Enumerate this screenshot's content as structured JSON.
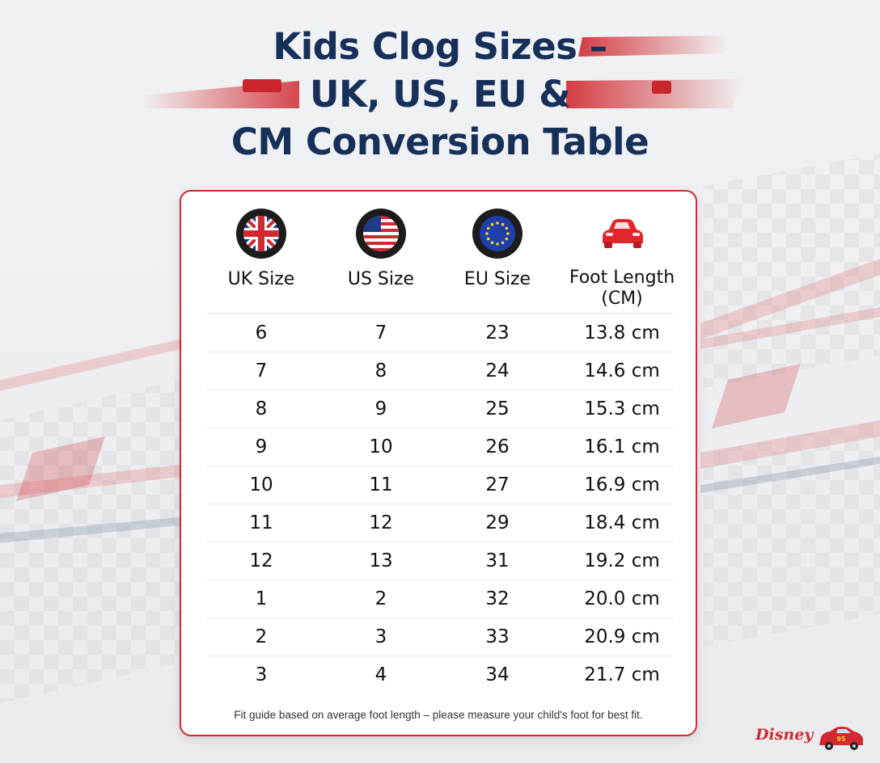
{
  "title": {
    "line1": "Kids Clog Sizes –",
    "line2": "UK, US, EU &",
    "line3": "CM Conversion Table"
  },
  "table": {
    "columns": [
      {
        "label": "UK Size",
        "icon": "uk-flag-icon"
      },
      {
        "label": "US Size",
        "icon": "us-flag-icon"
      },
      {
        "label": "EU Size",
        "icon": "eu-flag-icon"
      },
      {
        "label_line1": "Foot Length",
        "label_line2": "(CM)",
        "icon": "red-car-icon"
      }
    ],
    "rows": [
      {
        "uk": "6",
        "us": "7",
        "eu": "23",
        "cm": "13.8 cm"
      },
      {
        "uk": "7",
        "us": "8",
        "eu": "24",
        "cm": "14.6 cm"
      },
      {
        "uk": "8",
        "us": "9",
        "eu": "25",
        "cm": "15.3 cm"
      },
      {
        "uk": "9",
        "us": "10",
        "eu": "26",
        "cm": "16.1 cm"
      },
      {
        "uk": "10",
        "us": "11",
        "eu": "27",
        "cm": "16.9 cm"
      },
      {
        "uk": "11",
        "us": "12",
        "eu": "29",
        "cm": "18.4 cm"
      },
      {
        "uk": "12",
        "us": "13",
        "eu": "31",
        "cm": "19.2 cm"
      },
      {
        "uk": "1",
        "us": "2",
        "eu": "32",
        "cm": "20.0 cm"
      },
      {
        "uk": "2",
        "us": "3",
        "eu": "33",
        "cm": "20.9 cm"
      },
      {
        "uk": "3",
        "us": "4",
        "eu": "34",
        "cm": "21.7 cm"
      }
    ],
    "footnote": "Fit guide based on average foot length – please measure your child's foot for best fit."
  },
  "branding": {
    "disney": "Disney",
    "badge_number": "95"
  },
  "colors": {
    "title": "#16305a",
    "accent_red": "#d0292f",
    "border": "#d0292f"
  }
}
